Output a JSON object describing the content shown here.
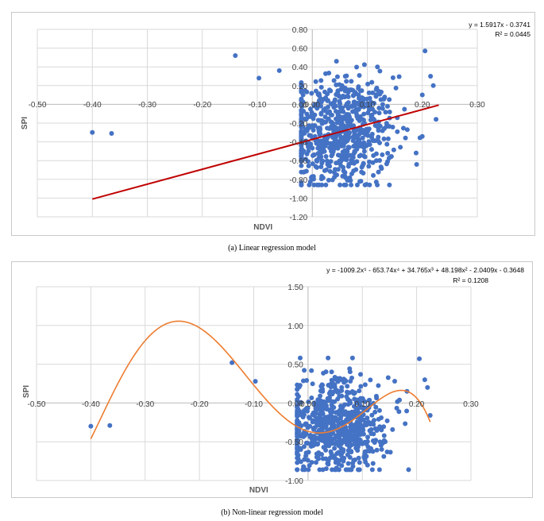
{
  "chart_data": [
    {
      "type": "scatter",
      "caption": "(a) Linear regression model",
      "xlabel": "NDVI",
      "ylabel": "SPI",
      "xlim": [
        -0.5,
        0.3
      ],
      "ylim": [
        -1.2,
        0.8
      ],
      "x_ticks": [
        "-0.50",
        "-0.40",
        "-0.30",
        "-0.20",
        "-0.10",
        "0.00",
        "0.10",
        "0.20",
        "0.30"
      ],
      "y_ticks": [
        "0.80",
        "0.60",
        "0.40",
        "0.20",
        "0.00",
        "-0.20",
        "-0.40",
        "-0.60",
        "-0.80",
        "-1.00",
        "-1.20"
      ],
      "grid": true,
      "equation": "y = 1.5917x - 0.3741",
      "r2": "R² = 0.0445",
      "trendline": {
        "kind": "linear",
        "slope": 1.5917,
        "intercept": -0.3741,
        "x_range": [
          -0.4,
          0.23
        ]
      },
      "colors": {
        "points": "#4472c4",
        "trend": "#c00000"
      },
      "outliers": [
        {
          "x": -0.4,
          "y": -0.3
        },
        {
          "x": -0.365,
          "y": -0.31
        },
        {
          "x": -0.14,
          "y": 0.52
        },
        {
          "x": -0.097,
          "y": 0.28
        },
        {
          "x": -0.06,
          "y": 0.36
        },
        {
          "x": 0.205,
          "y": 0.57
        },
        {
          "x": 0.215,
          "y": 0.3
        },
        {
          "x": 0.22,
          "y": 0.2
        },
        {
          "x": 0.225,
          "y": -0.16
        }
      ],
      "cluster": {
        "n": 700,
        "x_mean": 0.05,
        "x_sd": 0.05,
        "y_mean": -0.3,
        "y_sd": 0.3
      }
    },
    {
      "type": "scatter",
      "caption": "(b) Non-linear regression model",
      "xlabel": "NDVI",
      "ylabel": "SPI",
      "xlim": [
        -0.5,
        0.3
      ],
      "ylim": [
        -1.0,
        1.5
      ],
      "x_ticks": [
        "-0.50",
        "-0.40",
        "-0.30",
        "-0.20",
        "-0.10",
        "0.00",
        "0.10",
        "0.20",
        "0.30"
      ],
      "y_ticks": [
        "1.50",
        "1.00",
        "0.50",
        "0.00",
        "-0.50",
        "-1.00"
      ],
      "grid": true,
      "equation": "y = -1009.2x⁵ - 653.74x⁴ + 34.765x³ + 48.198x² - 2.0409x - 0.3648",
      "r2": "R² = 0.1208",
      "trendline": {
        "kind": "polynomial",
        "coefficients": [
          -1009.2,
          -653.74,
          34.765,
          48.198,
          -2.0409,
          -0.3648
        ],
        "x_range": [
          -0.4,
          0.225
        ]
      },
      "colors": {
        "points": "#4472c4",
        "trend": "#ed7d31"
      },
      "outliers": [
        {
          "x": -0.4,
          "y": -0.3
        },
        {
          "x": -0.365,
          "y": -0.29
        },
        {
          "x": -0.14,
          "y": 0.52
        },
        {
          "x": -0.097,
          "y": 0.28
        },
        {
          "x": 0.205,
          "y": 0.57
        },
        {
          "x": 0.215,
          "y": 0.3
        },
        {
          "x": 0.22,
          "y": 0.2
        },
        {
          "x": 0.225,
          "y": -0.16
        }
      ],
      "cluster": {
        "n": 700,
        "x_mean": 0.05,
        "x_sd": 0.05,
        "y_mean": -0.3,
        "y_sd": 0.3
      }
    }
  ]
}
